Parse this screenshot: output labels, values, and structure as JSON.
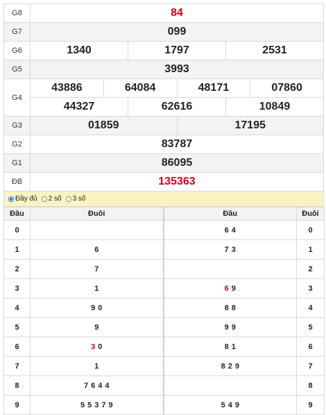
{
  "prizes": [
    {
      "label": "G8",
      "values": [
        "84"
      ],
      "red": true,
      "shade": false
    },
    {
      "label": "G7",
      "values": [
        "099"
      ],
      "shade": true
    },
    {
      "label": "G6",
      "values": [
        "1340",
        "1797",
        "2531"
      ],
      "shade": false
    },
    {
      "label": "G5",
      "values": [
        "3993"
      ],
      "shade": true
    },
    {
      "label": "G4",
      "row1": [
        "43886",
        "64084",
        "48171",
        "07860"
      ],
      "row2": [
        "44327",
        "62616",
        "10849"
      ]
    },
    {
      "label": "G3",
      "values": [
        "01859",
        "17195"
      ],
      "shade": true
    },
    {
      "label": "G2",
      "values": [
        "83787"
      ],
      "shade": false
    },
    {
      "label": "G1",
      "values": [
        "86095"
      ],
      "shade": true
    },
    {
      "label": "ĐB",
      "values": [
        "135363"
      ],
      "red": true,
      "shade": false
    }
  ],
  "options": {
    "full": "Đầy đủ",
    "two": "2 số",
    "three": "3 số",
    "selected": "full"
  },
  "loto_headers": {
    "dau": "Đầu",
    "duoi": "Đuôi"
  },
  "loto_rows": [
    {
      "d": "0",
      "duoi": [],
      "dau2": [
        {
          "v": "6"
        },
        {
          "v": "4"
        }
      ]
    },
    {
      "d": "1",
      "duoi": [
        {
          "v": "6"
        }
      ],
      "dau2": [
        {
          "v": "7"
        },
        {
          "v": "3"
        }
      ]
    },
    {
      "d": "2",
      "duoi": [
        {
          "v": "7"
        }
      ],
      "dau2": []
    },
    {
      "d": "3",
      "duoi": [
        {
          "v": "1"
        }
      ],
      "dau2": [
        {
          "v": "6",
          "red": true
        },
        {
          "v": "9"
        }
      ]
    },
    {
      "d": "4",
      "duoi": [
        {
          "v": "9"
        },
        {
          "v": "0"
        }
      ],
      "dau2": [
        {
          "v": "8"
        },
        {
          "v": "8"
        }
      ]
    },
    {
      "d": "5",
      "duoi": [
        {
          "v": "9"
        }
      ],
      "dau2": [
        {
          "v": "9"
        },
        {
          "v": "9"
        }
      ]
    },
    {
      "d": "6",
      "duoi": [
        {
          "v": "3",
          "red": true
        },
        {
          "v": "0"
        }
      ],
      "dau2": [
        {
          "v": "8"
        },
        {
          "v": "1"
        }
      ]
    },
    {
      "d": "7",
      "duoi": [
        {
          "v": "1"
        }
      ],
      "dau2": [
        {
          "v": "8"
        },
        {
          "v": "2"
        },
        {
          "v": "9"
        }
      ]
    },
    {
      "d": "8",
      "duoi": [
        {
          "v": "7"
        },
        {
          "v": "6"
        },
        {
          "v": "4"
        },
        {
          "v": "4"
        }
      ],
      "dau2": []
    },
    {
      "d": "9",
      "duoi": [
        {
          "v": "5"
        },
        {
          "v": "5"
        },
        {
          "v": "3"
        },
        {
          "v": "7"
        },
        {
          "v": "9"
        }
      ],
      "dau2": [
        {
          "v": "5"
        },
        {
          "v": "4"
        },
        {
          "v": "9"
        }
      ]
    }
  ],
  "colors": {
    "red": "#d0021b",
    "highlight": "#fdf2c2",
    "shade": "#f3f3f3"
  }
}
